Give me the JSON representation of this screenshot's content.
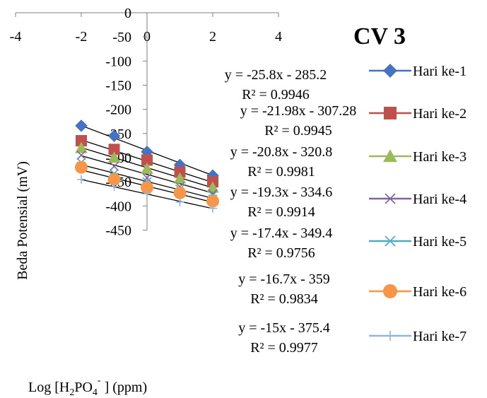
{
  "chart_data": {
    "type": "scatter",
    "title": "CV 3",
    "xlabel_parts": [
      "Log [H",
      "2",
      "PO",
      "4",
      "-",
      " ] (ppm)"
    ],
    "ylabel": "Beda Potensial (mV)",
    "xlim": [
      -4,
      4
    ],
    "ylim": [
      -450,
      0
    ],
    "x_ticks": [
      -4,
      -2,
      0,
      2,
      4
    ],
    "x_tick_labels": [
      "-4",
      "-2",
      "0",
      "2",
      "4"
    ],
    "y_ticks": [
      0,
      -50,
      -100,
      -150,
      -200,
      -250,
      -300,
      -350,
      -400,
      -450
    ],
    "y_tick_labels": [
      "0",
      "-50",
      "-100",
      "-150",
      "-200",
      "-250",
      "-300",
      "-350",
      "-400",
      "-450"
    ],
    "grid": false,
    "legend_position": "right",
    "x": [
      -2,
      -1,
      0,
      1,
      2
    ],
    "series": [
      {
        "name": "Hari ke-1",
        "color": "#4472C4",
        "marker": "diamond",
        "y": [
          -234,
          -255,
          -288,
          -315,
          -337
        ],
        "trend": {
          "slope": -25.8,
          "intercept": -285.2
        },
        "equation": "y = -25.8x - 285.2",
        "r2": "R² = 0.9946"
      },
      {
        "name": "Hari ke-2",
        "color": "#C0504D",
        "marker": "square",
        "y": [
          -265,
          -283,
          -305,
          -330,
          -350
        ],
        "trend": {
          "slope": -21.98,
          "intercept": -307.28
        },
        "equation": "y = -21.98x - 307.28",
        "r2": "R² = 0.9945"
      },
      {
        "name": "Hari ke-3",
        "color": "#9BBB59",
        "marker": "triangle",
        "y": [
          -280,
          -300,
          -323,
          -343,
          -362
        ],
        "trend": {
          "slope": -20.8,
          "intercept": -320.8
        },
        "equation": "y = -20.8x - 320.8",
        "r2": "R² = 0.9981"
      },
      {
        "name": "Hari ke-4",
        "color": "#8064A2",
        "marker": "x",
        "y": [
          -295,
          -318,
          -342,
          -360,
          -375
        ],
        "trend": {
          "slope": -19.3,
          "intercept": -334.6
        },
        "equation": "y = -19.3x - 334.6",
        "r2": "R² = 0.9914"
      },
      {
        "name": "Hari ke-5",
        "color": "#4BACC6",
        "marker": "star",
        "y": [
          -310,
          -333,
          -350,
          -365,
          -378
        ],
        "trend": {
          "slope": -17.4,
          "intercept": -349.4
        },
        "equation": "y = -17.4x - 349.4",
        "r2": "R² = 0.9756"
      },
      {
        "name": "Hari ke-6",
        "color": "#F79646",
        "marker": "circle",
        "y": [
          -320,
          -345,
          -362,
          -373,
          -390
        ],
        "trend": {
          "slope": -16.7,
          "intercept": -359
        },
        "equation": "y = -16.7x - 359",
        "r2": "R² = 0.9834"
      },
      {
        "name": "Hari ke-7",
        "color": "#95B3D7",
        "marker": "plus",
        "y": [
          -345,
          -360,
          -375,
          -392,
          -405
        ],
        "trend": {
          "slope": -15,
          "intercept": -375.4
        },
        "equation": "y = -15x - 375.4",
        "r2": "R² = 0.9977"
      }
    ]
  }
}
